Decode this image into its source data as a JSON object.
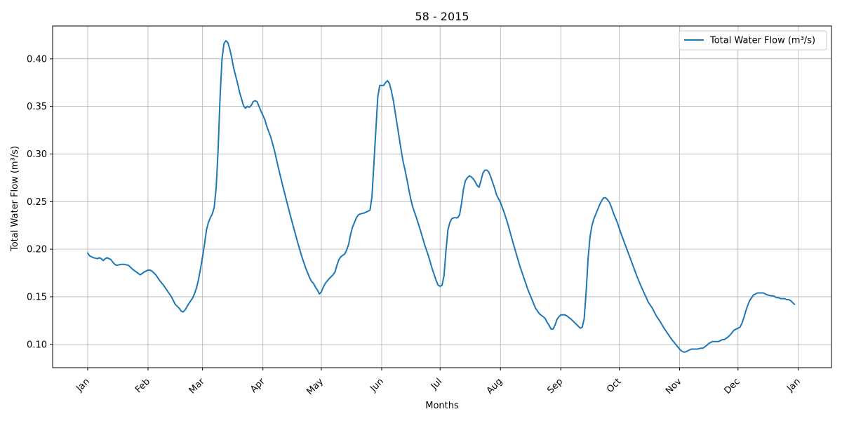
{
  "chart_data": {
    "type": "line",
    "title": "58 - 2015",
    "xlabel": "Months",
    "ylabel": "Total Water Flow (m³/s)",
    "x_ticks": [
      {
        "label": "Jan",
        "day": 0
      },
      {
        "label": "Feb",
        "day": 31
      },
      {
        "label": "Mar",
        "day": 59
      },
      {
        "label": "Apr",
        "day": 90
      },
      {
        "label": "May",
        "day": 120
      },
      {
        "label": "Jun",
        "day": 151
      },
      {
        "label": "Jul",
        "day": 181
      },
      {
        "label": "Aug",
        "day": 212
      },
      {
        "label": "Sep",
        "day": 243
      },
      {
        "label": "Oct",
        "day": 273
      },
      {
        "label": "Nov",
        "day": 304
      },
      {
        "label": "Dec",
        "day": 334
      },
      {
        "label": "Jan",
        "day": 365
      }
    ],
    "y_ticks": [
      "0.10",
      "0.15",
      "0.20",
      "0.25",
      "0.30",
      "0.35",
      "0.40"
    ],
    "xlim": [
      -18,
      382
    ],
    "ylim": [
      0.0755,
      0.4345
    ],
    "grid": true,
    "legend_position": "top-right",
    "series": [
      {
        "name": "Total Water Flow (m³/s)",
        "color": "#1f77b4",
        "points": [
          [
            0,
            0.196
          ],
          [
            1,
            0.193
          ],
          [
            3,
            0.191
          ],
          [
            5,
            0.19
          ],
          [
            6,
            0.191
          ],
          [
            7,
            0.19
          ],
          [
            8,
            0.188
          ],
          [
            9,
            0.19
          ],
          [
            10,
            0.191
          ],
          [
            12,
            0.189
          ],
          [
            13,
            0.186
          ],
          [
            14,
            0.184
          ],
          [
            15,
            0.183
          ],
          [
            17,
            0.184
          ],
          [
            19,
            0.184
          ],
          [
            21,
            0.183
          ],
          [
            23,
            0.179
          ],
          [
            25,
            0.176
          ],
          [
            27,
            0.173
          ],
          [
            29,
            0.176
          ],
          [
            31,
            0.178
          ],
          [
            32,
            0.178
          ],
          [
            33,
            0.177
          ],
          [
            35,
            0.173
          ],
          [
            37,
            0.167
          ],
          [
            39,
            0.162
          ],
          [
            41,
            0.156
          ],
          [
            43,
            0.15
          ],
          [
            44,
            0.146
          ],
          [
            45,
            0.142
          ],
          [
            47,
            0.138
          ],
          [
            48,
            0.135
          ],
          [
            49,
            0.134
          ],
          [
            50,
            0.136
          ],
          [
            52,
            0.143
          ],
          [
            54,
            0.149
          ],
          [
            55,
            0.154
          ],
          [
            56,
            0.16
          ],
          [
            57,
            0.169
          ],
          [
            58,
            0.18
          ],
          [
            59,
            0.192
          ],
          [
            60,
            0.205
          ],
          [
            61,
            0.22
          ],
          [
            62,
            0.228
          ],
          [
            63,
            0.233
          ],
          [
            64,
            0.237
          ],
          [
            65,
            0.244
          ],
          [
            66,
            0.265
          ],
          [
            67,
            0.305
          ],
          [
            68,
            0.36
          ],
          [
            69,
            0.4
          ],
          [
            70,
            0.416
          ],
          [
            71,
            0.419
          ],
          [
            72,
            0.417
          ],
          [
            73,
            0.41
          ],
          [
            74,
            0.401
          ],
          [
            75,
            0.39
          ],
          [
            76,
            0.382
          ],
          [
            77,
            0.374
          ],
          [
            78,
            0.365
          ],
          [
            79,
            0.358
          ],
          [
            80,
            0.351
          ],
          [
            81,
            0.348
          ],
          [
            82,
            0.35
          ],
          [
            83,
            0.349
          ],
          [
            84,
            0.351
          ],
          [
            85,
            0.355
          ],
          [
            86,
            0.356
          ],
          [
            87,
            0.355
          ],
          [
            88,
            0.35
          ],
          [
            89,
            0.345
          ],
          [
            91,
            0.336
          ],
          [
            92,
            0.329
          ],
          [
            94,
            0.318
          ],
          [
            96,
            0.303
          ],
          [
            98,
            0.285
          ],
          [
            100,
            0.268
          ],
          [
            102,
            0.252
          ],
          [
            104,
            0.236
          ],
          [
            106,
            0.221
          ],
          [
            108,
            0.206
          ],
          [
            110,
            0.192
          ],
          [
            112,
            0.18
          ],
          [
            114,
            0.17
          ],
          [
            115,
            0.166
          ],
          [
            116,
            0.164
          ],
          [
            117,
            0.16
          ],
          [
            118,
            0.157
          ],
          [
            119,
            0.153
          ],
          [
            120,
            0.155
          ],
          [
            121,
            0.16
          ],
          [
            122,
            0.164
          ],
          [
            124,
            0.169
          ],
          [
            126,
            0.173
          ],
          [
            127,
            0.176
          ],
          [
            128,
            0.183
          ],
          [
            129,
            0.189
          ],
          [
            130,
            0.192
          ],
          [
            132,
            0.195
          ],
          [
            133,
            0.199
          ],
          [
            134,
            0.205
          ],
          [
            135,
            0.215
          ],
          [
            136,
            0.223
          ],
          [
            137,
            0.228
          ],
          [
            138,
            0.233
          ],
          [
            139,
            0.236
          ],
          [
            140,
            0.237
          ],
          [
            142,
            0.238
          ],
          [
            144,
            0.24
          ],
          [
            145,
            0.241
          ],
          [
            146,
            0.255
          ],
          [
            147,
            0.29
          ],
          [
            148,
            0.325
          ],
          [
            149,
            0.36
          ],
          [
            150,
            0.372
          ],
          [
            152,
            0.372
          ],
          [
            153,
            0.375
          ],
          [
            154,
            0.377
          ],
          [
            155,
            0.374
          ],
          [
            156,
            0.366
          ],
          [
            157,
            0.356
          ],
          [
            158,
            0.343
          ],
          [
            159,
            0.33
          ],
          [
            160,
            0.317
          ],
          [
            161,
            0.304
          ],
          [
            162,
            0.292
          ],
          [
            163,
            0.283
          ],
          [
            164,
            0.273
          ],
          [
            165,
            0.262
          ],
          [
            166,
            0.252
          ],
          [
            167,
            0.244
          ],
          [
            169,
            0.232
          ],
          [
            171,
            0.219
          ],
          [
            173,
            0.205
          ],
          [
            175,
            0.193
          ],
          [
            177,
            0.179
          ],
          [
            179,
            0.167
          ],
          [
            180,
            0.162
          ],
          [
            181,
            0.161
          ],
          [
            182,
            0.162
          ],
          [
            183,
            0.172
          ],
          [
            184,
            0.198
          ],
          [
            185,
            0.22
          ],
          [
            186,
            0.228
          ],
          [
            187,
            0.232
          ],
          [
            188,
            0.233
          ],
          [
            190,
            0.233
          ],
          [
            191,
            0.236
          ],
          [
            192,
            0.248
          ],
          [
            193,
            0.263
          ],
          [
            194,
            0.272
          ],
          [
            195,
            0.275
          ],
          [
            196,
            0.277
          ],
          [
            197,
            0.276
          ],
          [
            198,
            0.274
          ],
          [
            199,
            0.271
          ],
          [
            200,
            0.267
          ],
          [
            201,
            0.265
          ],
          [
            202,
            0.272
          ],
          [
            203,
            0.28
          ],
          [
            204,
            0.283
          ],
          [
            205,
            0.283
          ],
          [
            206,
            0.281
          ],
          [
            207,
            0.276
          ],
          [
            208,
            0.27
          ],
          [
            209,
            0.264
          ],
          [
            210,
            0.257
          ],
          [
            212,
            0.249
          ],
          [
            214,
            0.238
          ],
          [
            216,
            0.225
          ],
          [
            218,
            0.21
          ],
          [
            220,
            0.196
          ],
          [
            222,
            0.182
          ],
          [
            224,
            0.17
          ],
          [
            226,
            0.158
          ],
          [
            228,
            0.148
          ],
          [
            230,
            0.138
          ],
          [
            232,
            0.132
          ],
          [
            234,
            0.129
          ],
          [
            235,
            0.127
          ],
          [
            236,
            0.123
          ],
          [
            237,
            0.12
          ],
          [
            238,
            0.116
          ],
          [
            239,
            0.116
          ],
          [
            240,
            0.12
          ],
          [
            241,
            0.126
          ],
          [
            242,
            0.129
          ],
          [
            243,
            0.131
          ],
          [
            245,
            0.131
          ],
          [
            246,
            0.13
          ],
          [
            248,
            0.127
          ],
          [
            250,
            0.123
          ],
          [
            252,
            0.119
          ],
          [
            253,
            0.117
          ],
          [
            254,
            0.118
          ],
          [
            255,
            0.127
          ],
          [
            256,
            0.155
          ],
          [
            257,
            0.19
          ],
          [
            258,
            0.213
          ],
          [
            259,
            0.225
          ],
          [
            260,
            0.232
          ],
          [
            261,
            0.237
          ],
          [
            262,
            0.242
          ],
          [
            263,
            0.247
          ],
          [
            264,
            0.251
          ],
          [
            265,
            0.254
          ],
          [
            266,
            0.254
          ],
          [
            267,
            0.252
          ],
          [
            268,
            0.249
          ],
          [
            269,
            0.244
          ],
          [
            270,
            0.238
          ],
          [
            272,
            0.228
          ],
          [
            274,
            0.216
          ],
          [
            276,
            0.205
          ],
          [
            278,
            0.194
          ],
          [
            280,
            0.183
          ],
          [
            282,
            0.172
          ],
          [
            284,
            0.162
          ],
          [
            286,
            0.153
          ],
          [
            288,
            0.144
          ],
          [
            290,
            0.138
          ],
          [
            292,
            0.13
          ],
          [
            294,
            0.124
          ],
          [
            296,
            0.117
          ],
          [
            298,
            0.111
          ],
          [
            300,
            0.105
          ],
          [
            302,
            0.1
          ],
          [
            304,
            0.095
          ],
          [
            305,
            0.093
          ],
          [
            306,
            0.092
          ],
          [
            307,
            0.092
          ],
          [
            309,
            0.094
          ],
          [
            310,
            0.095
          ],
          [
            312,
            0.095
          ],
          [
            313,
            0.095
          ],
          [
            315,
            0.096
          ],
          [
            316,
            0.096
          ],
          [
            318,
            0.099
          ],
          [
            319,
            0.101
          ],
          [
            320,
            0.102
          ],
          [
            321,
            0.103
          ],
          [
            323,
            0.103
          ],
          [
            324,
            0.103
          ],
          [
            326,
            0.105
          ],
          [
            327,
            0.105
          ],
          [
            329,
            0.108
          ],
          [
            330,
            0.11
          ],
          [
            332,
            0.115
          ],
          [
            333,
            0.116
          ],
          [
            334,
            0.117
          ],
          [
            335,
            0.118
          ],
          [
            336,
            0.122
          ],
          [
            337,
            0.128
          ],
          [
            338,
            0.135
          ],
          [
            339,
            0.141
          ],
          [
            340,
            0.146
          ],
          [
            341,
            0.149
          ],
          [
            342,
            0.152
          ],
          [
            343,
            0.153
          ],
          [
            344,
            0.154
          ],
          [
            346,
            0.154
          ],
          [
            347,
            0.154
          ],
          [
            348,
            0.153
          ],
          [
            349,
            0.152
          ],
          [
            351,
            0.151
          ],
          [
            352,
            0.151
          ],
          [
            354,
            0.149
          ],
          [
            355,
            0.149
          ],
          [
            356,
            0.148
          ],
          [
            358,
            0.148
          ],
          [
            359,
            0.147
          ],
          [
            360,
            0.147
          ],
          [
            361,
            0.146
          ],
          [
            362,
            0.144
          ],
          [
            363,
            0.142
          ]
        ]
      }
    ]
  }
}
